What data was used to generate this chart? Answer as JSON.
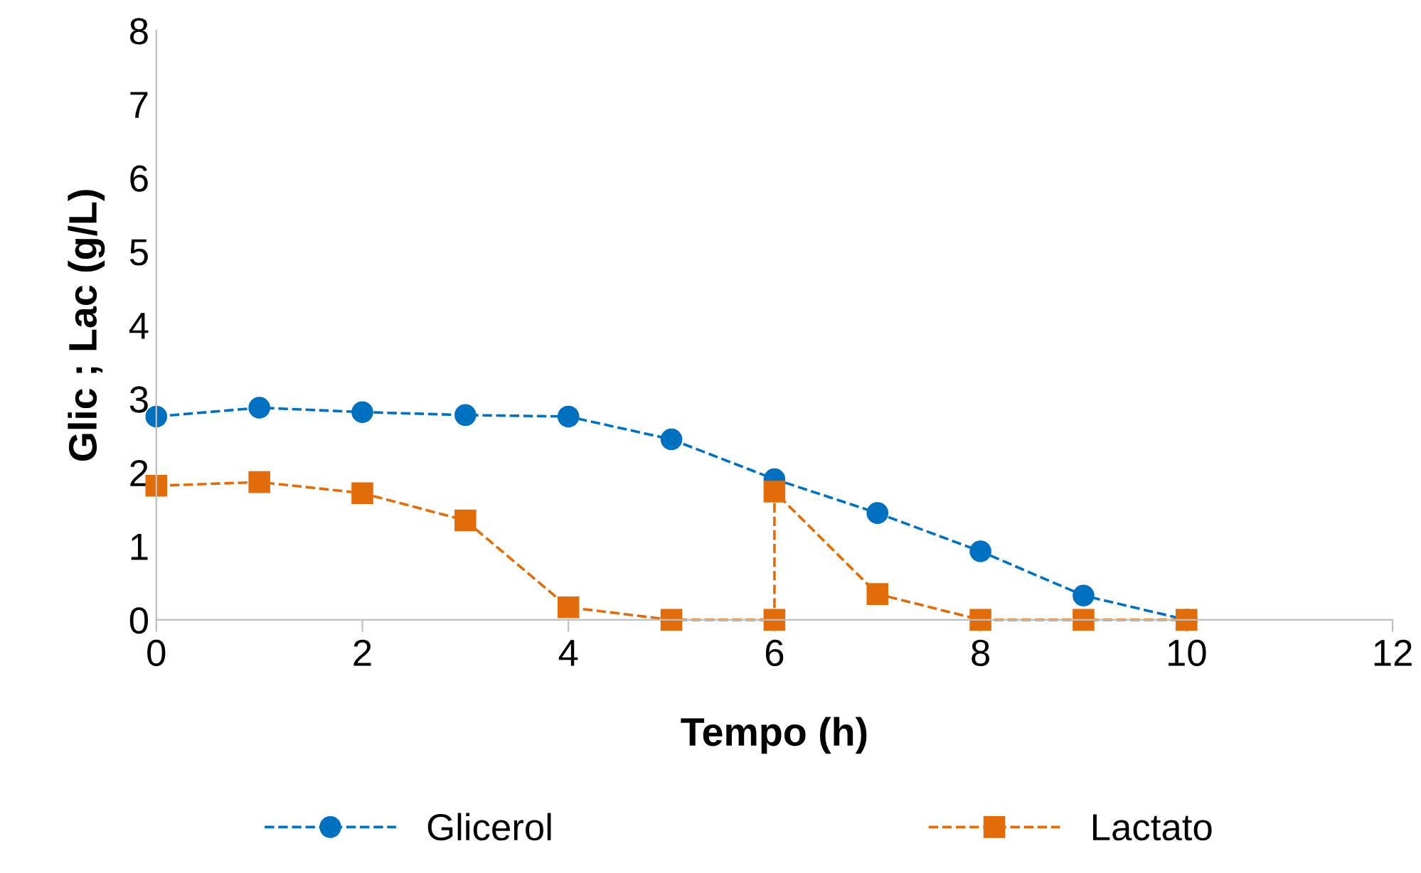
{
  "chart_data": {
    "type": "line",
    "xlabel": "Tempo (h)",
    "ylabel": "Glic ; Lac (g/L)",
    "xlim": [
      0,
      12
    ],
    "xticks": [
      0,
      2,
      4,
      6,
      8,
      10,
      12
    ],
    "ylim": [
      0,
      8
    ],
    "yticks": [
      0,
      1,
      2,
      3,
      4,
      5,
      6,
      7,
      8
    ],
    "grid": false,
    "legend": "bottom",
    "line_style": "dashed",
    "series": [
      {
        "name": "Glicerol",
        "color": "#0070c0",
        "marker": "circle",
        "x": [
          0,
          1,
          2,
          3,
          4,
          5,
          6,
          7,
          8,
          9,
          10
        ],
        "values": [
          2.76,
          2.88,
          2.82,
          2.78,
          2.76,
          2.45,
          1.91,
          1.45,
          0.93,
          0.33,
          0
        ]
      },
      {
        "name": "Lactato",
        "color": "#e36c0a",
        "marker": "square",
        "x": [
          0,
          1,
          2,
          3,
          4,
          5,
          6,
          6,
          7,
          8,
          9,
          10
        ],
        "values": [
          1.82,
          1.87,
          1.72,
          1.35,
          0.17,
          0,
          0,
          1.74,
          0.35,
          0,
          0,
          0
        ]
      }
    ]
  }
}
